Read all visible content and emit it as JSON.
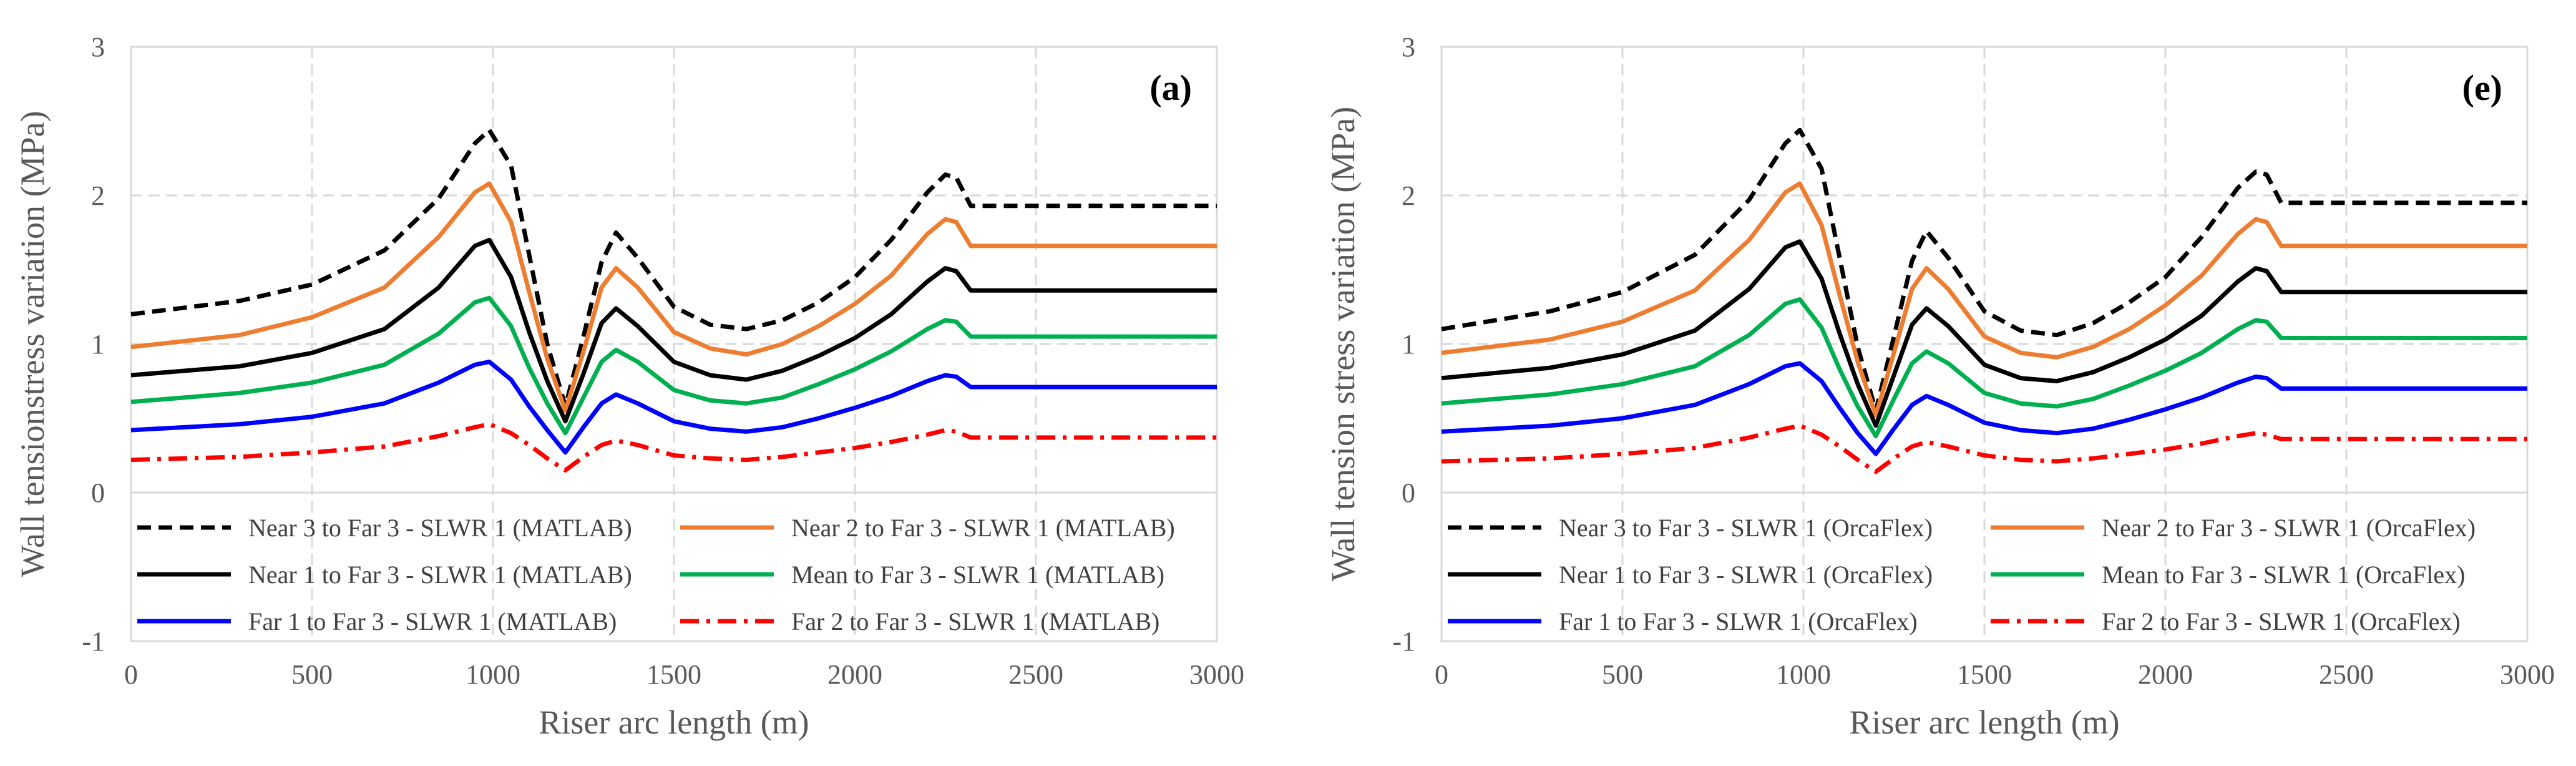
{
  "chart_data": [
    {
      "type": "line",
      "panel_label": "(a)",
      "xlabel": "Riser arc length (m)",
      "ylabel": "Wall tensionstress variation (MPa)",
      "xlim": [
        0,
        3000
      ],
      "ylim": [
        -1,
        3
      ],
      "xticks": [
        0,
        500,
        1000,
        1500,
        2000,
        2500,
        3000
      ],
      "yticks": [
        -1,
        0,
        1,
        2,
        3
      ],
      "grid": true,
      "legend_position": "bottom",
      "x": [
        0,
        300,
        500,
        700,
        850,
        950,
        990,
        1050,
        1100,
        1150,
        1200,
        1250,
        1300,
        1340,
        1400,
        1500,
        1600,
        1700,
        1800,
        1900,
        2000,
        2100,
        2200,
        2250,
        2280,
        2320,
        3000
      ],
      "series": [
        {
          "name": "Near 3 to Far 3 - SLWR 1 (MATLAB)",
          "color": "#000000",
          "dash": "dash",
          "values": [
            1.2,
            1.29,
            1.4,
            1.63,
            1.98,
            2.35,
            2.44,
            2.2,
            1.6,
            1.0,
            0.58,
            1.05,
            1.55,
            1.75,
            1.58,
            1.25,
            1.13,
            1.1,
            1.16,
            1.28,
            1.45,
            1.7,
            2.02,
            2.14,
            2.12,
            1.93,
            1.93
          ]
        },
        {
          "name": "Near 2 to Far 3 - SLWR 1 (MATLAB)",
          "color": "#ED7D31",
          "dash": "solid",
          "values": [
            0.98,
            1.06,
            1.18,
            1.38,
            1.72,
            2.02,
            2.08,
            1.82,
            1.35,
            0.9,
            0.55,
            0.95,
            1.38,
            1.51,
            1.38,
            1.08,
            0.97,
            0.93,
            1.0,
            1.12,
            1.27,
            1.46,
            1.74,
            1.84,
            1.82,
            1.66,
            1.66
          ]
        },
        {
          "name": "Near 1 to Far 3 - SLWR 1 (MATLAB)",
          "color": "#000000",
          "dash": "solid",
          "values": [
            0.79,
            0.85,
            0.94,
            1.1,
            1.38,
            1.66,
            1.7,
            1.45,
            1.08,
            0.75,
            0.48,
            0.8,
            1.14,
            1.24,
            1.12,
            0.88,
            0.79,
            0.76,
            0.82,
            0.92,
            1.04,
            1.2,
            1.42,
            1.51,
            1.49,
            1.36,
            1.36
          ]
        },
        {
          "name": "Mean to Far 3 - SLWR 1 (MATLAB)",
          "color": "#00B050",
          "dash": "solid",
          "values": [
            0.61,
            0.67,
            0.74,
            0.86,
            1.07,
            1.28,
            1.31,
            1.12,
            0.84,
            0.6,
            0.4,
            0.64,
            0.88,
            0.96,
            0.88,
            0.69,
            0.62,
            0.6,
            0.64,
            0.73,
            0.83,
            0.95,
            1.1,
            1.16,
            1.15,
            1.05,
            1.05
          ]
        },
        {
          "name": "Far 1 to Far 3 - SLWR 1 (MATLAB)",
          "color": "#0000FF",
          "dash": "solid",
          "values": [
            0.42,
            0.46,
            0.51,
            0.6,
            0.74,
            0.86,
            0.88,
            0.76,
            0.58,
            0.42,
            0.27,
            0.44,
            0.6,
            0.66,
            0.6,
            0.48,
            0.43,
            0.41,
            0.44,
            0.5,
            0.57,
            0.65,
            0.75,
            0.79,
            0.78,
            0.71,
            0.71
          ]
        },
        {
          "name": "Far 2 to Far 3 - SLWR 1 (MATLAB)",
          "color": "#FF0000",
          "dash": "dashdot",
          "values": [
            0.22,
            0.24,
            0.27,
            0.31,
            0.38,
            0.44,
            0.46,
            0.4,
            0.32,
            0.23,
            0.15,
            0.24,
            0.32,
            0.35,
            0.32,
            0.25,
            0.23,
            0.22,
            0.24,
            0.27,
            0.3,
            0.34,
            0.39,
            0.42,
            0.41,
            0.37,
            0.37
          ]
        }
      ]
    },
    {
      "type": "line",
      "panel_label": "(e)",
      "xlabel": "Riser arc length (m)",
      "ylabel": "Wall tension stress variation (MPa)",
      "xlim": [
        0,
        3000
      ],
      "ylim": [
        -1,
        3
      ],
      "xticks": [
        0,
        500,
        1000,
        1500,
        2000,
        2500,
        3000
      ],
      "yticks": [
        -1,
        0,
        1,
        2,
        3
      ],
      "grid": true,
      "legend_position": "bottom",
      "x": [
        0,
        300,
        500,
        700,
        850,
        950,
        990,
        1050,
        1100,
        1150,
        1200,
        1250,
        1300,
        1340,
        1400,
        1500,
        1600,
        1700,
        1800,
        1900,
        2000,
        2100,
        2200,
        2250,
        2280,
        2320,
        3000
      ],
      "series": [
        {
          "name": "Near 3 to Far 3 - SLWR 1 (OrcaFlex)",
          "color": "#000000",
          "dash": "dash",
          "values": [
            1.1,
            1.22,
            1.35,
            1.6,
            1.97,
            2.35,
            2.44,
            2.18,
            1.58,
            0.98,
            0.55,
            1.05,
            1.56,
            1.76,
            1.58,
            1.22,
            1.09,
            1.06,
            1.14,
            1.28,
            1.45,
            1.72,
            2.05,
            2.16,
            2.14,
            1.95,
            1.95
          ]
        },
        {
          "name": "Near 2 to Far 3 - SLWR 1 (OrcaFlex)",
          "color": "#ED7D31",
          "dash": "solid",
          "values": [
            0.94,
            1.03,
            1.15,
            1.36,
            1.7,
            2.02,
            2.08,
            1.8,
            1.33,
            0.88,
            0.52,
            0.94,
            1.37,
            1.51,
            1.37,
            1.05,
            0.94,
            0.91,
            0.98,
            1.1,
            1.26,
            1.46,
            1.74,
            1.84,
            1.82,
            1.66,
            1.66
          ]
        },
        {
          "name": "Near 1 to Far 3 - SLWR 1 (OrcaFlex)",
          "color": "#000000",
          "dash": "solid",
          "values": [
            0.77,
            0.84,
            0.93,
            1.09,
            1.37,
            1.65,
            1.69,
            1.44,
            1.07,
            0.73,
            0.45,
            0.79,
            1.13,
            1.24,
            1.12,
            0.86,
            0.77,
            0.75,
            0.81,
            0.91,
            1.03,
            1.19,
            1.42,
            1.51,
            1.49,
            1.35,
            1.35
          ]
        },
        {
          "name": "Mean to Far 3 - SLWR 1 (OrcaFlex)",
          "color": "#00B050",
          "dash": "solid",
          "values": [
            0.6,
            0.66,
            0.73,
            0.85,
            1.06,
            1.27,
            1.3,
            1.11,
            0.83,
            0.58,
            0.38,
            0.63,
            0.87,
            0.95,
            0.87,
            0.67,
            0.6,
            0.58,
            0.63,
            0.72,
            0.82,
            0.94,
            1.1,
            1.16,
            1.15,
            1.04,
            1.04
          ]
        },
        {
          "name": "Far 1 to Far 3 - SLWR 1 (OrcaFlex)",
          "color": "#0000FF",
          "dash": "solid",
          "values": [
            0.41,
            0.45,
            0.5,
            0.59,
            0.73,
            0.85,
            0.87,
            0.75,
            0.57,
            0.4,
            0.26,
            0.43,
            0.59,
            0.65,
            0.59,
            0.47,
            0.42,
            0.4,
            0.43,
            0.49,
            0.56,
            0.64,
            0.74,
            0.78,
            0.77,
            0.7,
            0.7
          ]
        },
        {
          "name": "Far 2 to Far 3 - SLWR 1 (OrcaFlex)",
          "color": "#FF0000",
          "dash": "dashdot",
          "values": [
            0.21,
            0.23,
            0.26,
            0.3,
            0.37,
            0.43,
            0.45,
            0.39,
            0.31,
            0.22,
            0.14,
            0.23,
            0.31,
            0.34,
            0.31,
            0.25,
            0.22,
            0.21,
            0.23,
            0.26,
            0.29,
            0.33,
            0.38,
            0.4,
            0.39,
            0.36,
            0.36
          ]
        }
      ]
    }
  ]
}
